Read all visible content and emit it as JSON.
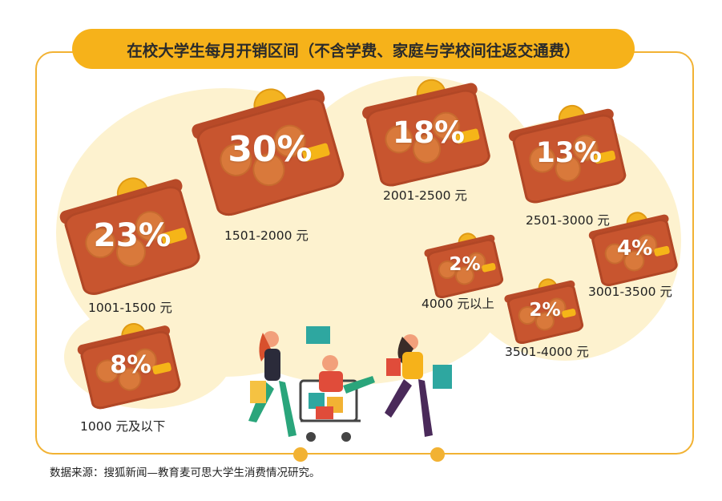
{
  "title": "在校大学生每月开销区间（不含学费、家庭与学校间往返交通费）",
  "source": "数据来源：搜狐新闻—教育麦可思大学生消费情况研究。",
  "colors": {
    "accent": "#f6b21a",
    "wallet": "#c8552f",
    "coin": "#f3b321",
    "background_blob": "#fdf2cf"
  },
  "chart_data": {
    "type": "pictorial",
    "title": "在校大学生每月开销区间（不含学费、家庭与学校间往返交通费）",
    "categories": [
      "1000 元及以下",
      "1001-1500 元",
      "1501-2000 元",
      "2001-2500 元",
      "2501-3000 元",
      "3001-3500 元",
      "3501-4000 元",
      "4000 元以上"
    ],
    "values": [
      8,
      23,
      30,
      18,
      13,
      4,
      2,
      2
    ],
    "value_labels": [
      "8%",
      "23%",
      "30%",
      "18%",
      "13%",
      "4%",
      "2%",
      "2%"
    ],
    "unit": "%"
  }
}
